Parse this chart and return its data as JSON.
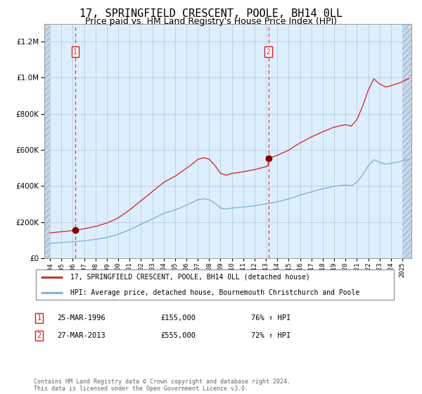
{
  "title": "17, SPRINGFIELD CRESCENT, POOLE, BH14 0LL",
  "subtitle": "Price paid vs. HM Land Registry's House Price Index (HPI)",
  "title_fontsize": 11,
  "subtitle_fontsize": 9,
  "legend_line1": "17, SPRINGFIELD CRESCENT, POOLE, BH14 0LL (detached house)",
  "legend_line2": "HPI: Average price, detached house, Bournemouth Christchurch and Poole",
  "annotation1_label": "1",
  "annotation1_date": "25-MAR-1996",
  "annotation1_price": "£155,000",
  "annotation1_hpi": "76% ↑ HPI",
  "annotation2_label": "2",
  "annotation2_date": "27-MAR-2013",
  "annotation2_price": "£555,000",
  "annotation2_hpi": "72% ↑ HPI",
  "footnote": "Contains HM Land Registry data © Crown copyright and database right 2024.\nThis data is licensed under the Open Government Licence v3.0.",
  "hpi_color": "#7aaed4",
  "price_color": "#cc2222",
  "dot_color": "#880000",
  "vline_color": "#dd4444",
  "bg_color": "#ddeeff",
  "hatch_bg_color": "#c8d8ea",
  "grid_color": "#bbccdd",
  "ylim": [
    0,
    1300000
  ],
  "yticks": [
    0,
    200000,
    400000,
    600000,
    800000,
    1000000,
    1200000
  ],
  "xlim_start": 1993.5,
  "xlim_end": 2025.8,
  "sale1_x": 1996.22,
  "sale1_y": 155000,
  "sale2_x": 2013.22,
  "sale2_y": 555000,
  "hpi_start_year": 1994.0,
  "hpi_end_year": 2025.5
}
